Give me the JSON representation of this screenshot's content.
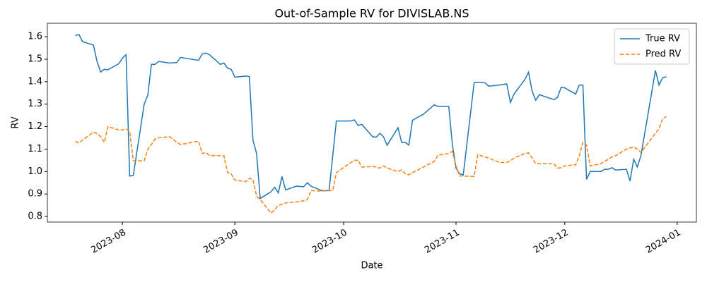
{
  "chart_data": {
    "type": "line",
    "title": "Out-of-Sample RV for DIVISLAB.NS",
    "xlabel": "Date",
    "ylabel": "RV",
    "x": [
      19557,
      19558,
      19559,
      19562,
      19563,
      19564,
      19565,
      19566,
      19569,
      19570,
      19571,
      19572,
      19573,
      19576,
      19577,
      19578,
      19579,
      19580,
      19583,
      19585,
      19586,
      19591,
      19592,
      19593,
      19594,
      19597,
      19598,
      19599,
      19600,
      19601,
      19604,
      19605,
      19606,
      19607,
      19608,
      19611,
      19612,
      19613,
      19614,
      19615,
      19618,
      19620,
      19621,
      19622,
      19625,
      19627,
      19628,
      19629,
      19633,
      19634,
      19635,
      19636,
      19639,
      19640,
      19641,
      19642,
      19643,
      19646,
      19647,
      19648,
      19649,
      19650,
      19653,
      19656,
      19657,
      19660,
      19661,
      19662,
      19663,
      19664,
      19667,
      19668,
      19670,
      19671,
      19674,
      19676,
      19677,
      19678,
      19681,
      19682,
      19683,
      19684,
      19685,
      19689,
      19690,
      19691,
      19692,
      19695,
      19696,
      19697,
      19698,
      19699,
      19702,
      19703,
      19704,
      19705,
      19706,
      19709,
      19710,
      19711,
      19712,
      19713,
      19717,
      19718,
      19719,
      19720
    ],
    "series": [
      {
        "name": "True RV",
        "color": "#1f77b4",
        "linestyle": "solid",
        "values": [
          1.605,
          1.61,
          1.578,
          1.563,
          1.49,
          1.443,
          1.455,
          1.453,
          1.48,
          1.505,
          1.52,
          0.98,
          0.983,
          1.3,
          1.34,
          1.477,
          1.477,
          1.49,
          1.483,
          1.485,
          1.508,
          1.495,
          1.523,
          1.527,
          1.52,
          1.477,
          1.483,
          1.46,
          1.455,
          1.42,
          1.425,
          1.423,
          1.14,
          1.08,
          0.88,
          0.91,
          0.93,
          0.905,
          0.978,
          0.918,
          0.935,
          0.932,
          0.95,
          0.935,
          0.915,
          0.915,
          1.07,
          1.225,
          1.225,
          1.23,
          1.205,
          1.21,
          1.155,
          1.153,
          1.17,
          1.155,
          1.117,
          1.195,
          1.13,
          1.13,
          1.118,
          1.228,
          1.255,
          1.297,
          1.29,
          1.29,
          1.12,
          1.015,
          0.99,
          0.985,
          1.395,
          1.398,
          1.395,
          1.38,
          1.385,
          1.39,
          1.307,
          1.345,
          1.41,
          1.442,
          1.357,
          1.317,
          1.342,
          1.32,
          1.33,
          1.375,
          1.372,
          1.345,
          1.385,
          1.385,
          0.965,
          1.0,
          1.0,
          1.01,
          1.01,
          1.017,
          1.007,
          1.01,
          0.958,
          1.055,
          1.02,
          1.07,
          1.45,
          1.385,
          1.418,
          1.422
        ]
      },
      {
        "name": "Pred RV",
        "color": "#ff7f0e",
        "linestyle": "dashed",
        "values": [
          1.135,
          1.127,
          1.14,
          1.175,
          1.17,
          1.155,
          1.13,
          1.2,
          1.185,
          1.185,
          1.19,
          1.18,
          1.048,
          1.048,
          1.1,
          1.12,
          1.145,
          1.15,
          1.155,
          1.13,
          1.12,
          1.135,
          1.08,
          1.085,
          1.072,
          1.07,
          1.07,
          0.995,
          0.99,
          0.962,
          0.955,
          0.97,
          0.965,
          0.89,
          0.875,
          0.815,
          0.83,
          0.85,
          0.853,
          0.86,
          0.865,
          0.87,
          0.875,
          0.915,
          0.913,
          0.915,
          0.915,
          0.995,
          1.04,
          1.05,
          1.05,
          1.02,
          1.022,
          1.02,
          1.015,
          1.025,
          1.015,
          1.0,
          1.007,
          0.99,
          0.985,
          0.995,
          1.02,
          1.045,
          1.073,
          1.08,
          1.09,
          1.025,
          0.98,
          0.98,
          0.978,
          1.075,
          1.065,
          1.06,
          1.04,
          1.04,
          1.048,
          1.06,
          1.08,
          1.083,
          1.06,
          1.035,
          1.035,
          1.035,
          1.015,
          1.017,
          1.025,
          1.03,
          1.07,
          1.13,
          1.118,
          1.025,
          1.035,
          1.045,
          1.055,
          1.065,
          1.07,
          1.1,
          1.105,
          1.11,
          1.1,
          1.085,
          1.17,
          1.19,
          1.235,
          1.245
        ]
      }
    ],
    "xlim": [
      19549.3,
      19728.3
    ],
    "xticks": [
      {
        "value": 19570,
        "label": "2023-08"
      },
      {
        "value": 19601,
        "label": "2023-09"
      },
      {
        "value": 19631,
        "label": "2023-10"
      },
      {
        "value": 19662,
        "label": "2023-11"
      },
      {
        "value": 19692,
        "label": "2023-12"
      },
      {
        "value": 19723,
        "label": "2024-01"
      }
    ],
    "ylim": [
      0.775,
      1.66
    ],
    "yticks": [
      0.8,
      0.9,
      {
        "value": 1,
        "label": "1.0"
      },
      1.1,
      1.2,
      1.3,
      1.4,
      1.5,
      1.6
    ],
    "grid": false,
    "legend": "upper right"
  }
}
